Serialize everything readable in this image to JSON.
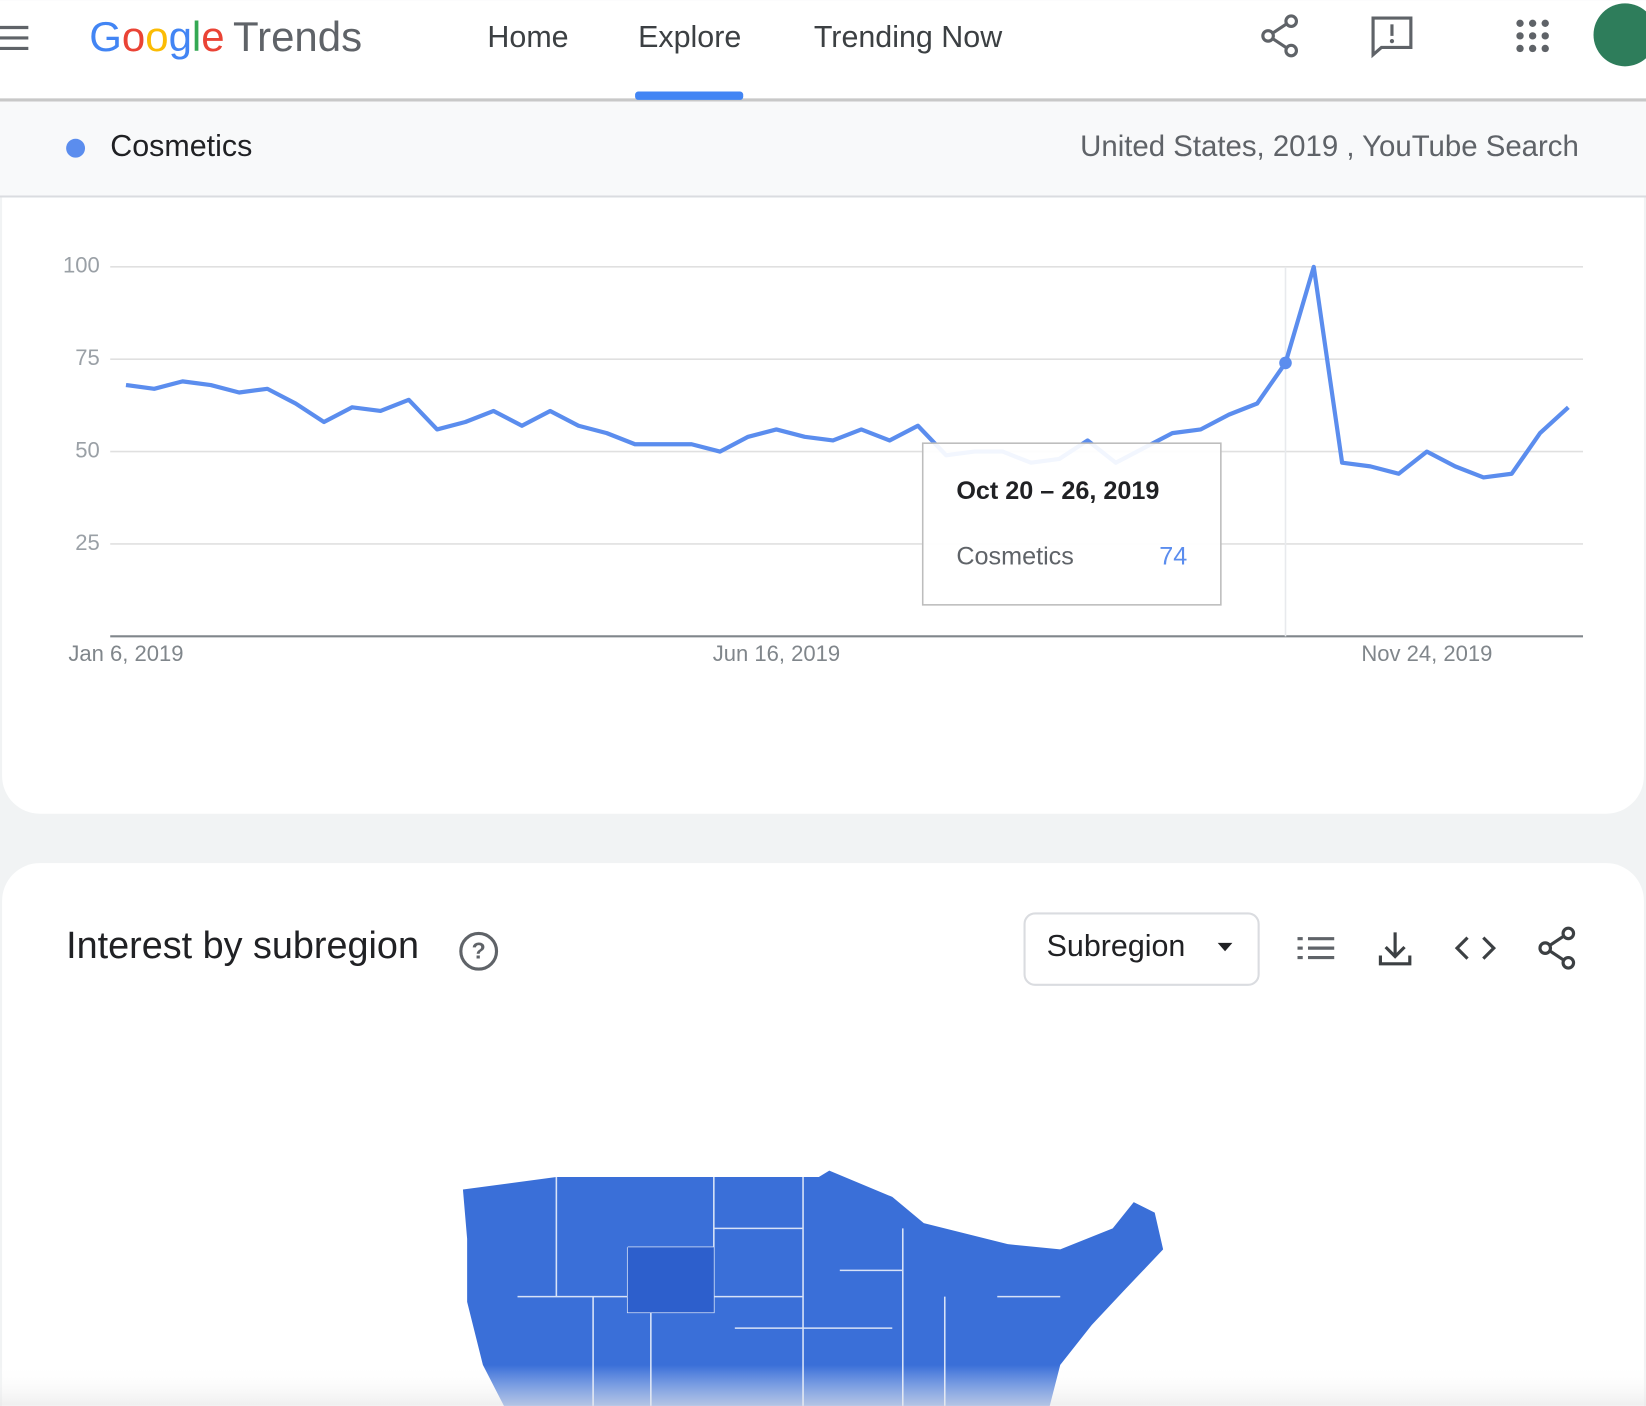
{
  "header": {
    "logo_google": "Google",
    "logo_trends": "Trends",
    "nav": [
      "Home",
      "Explore",
      "Trending Now"
    ]
  },
  "legend_bar": {
    "filters": "United States, 2019 , YouTube Search"
  },
  "chart_data": {
    "type": "line",
    "categories": [
      "Jan 6, 2019",
      null,
      null,
      null,
      null,
      null,
      null,
      null,
      null,
      null,
      null,
      null,
      null,
      null,
      null,
      null,
      null,
      null,
      null,
      null,
      null,
      null,
      null,
      "Jun 16, 2019",
      null,
      null,
      null,
      null,
      null,
      null,
      null,
      null,
      null,
      null,
      null,
      null,
      null,
      null,
      null,
      null,
      null,
      null,
      null,
      null,
      null,
      null,
      "Nov 24, 2019",
      null,
      null,
      null,
      null,
      null
    ],
    "series": [
      {
        "name": "Cosmetics",
        "color": "#5b8dee",
        "values": [
          68,
          67,
          69,
          68,
          66,
          67,
          63,
          58,
          62,
          61,
          64,
          56,
          58,
          61,
          57,
          61,
          57,
          55,
          52,
          52,
          52,
          50,
          54,
          56,
          54,
          53,
          56,
          53,
          57,
          49,
          50,
          50,
          47,
          48,
          53,
          47,
          51,
          55,
          56,
          60,
          63,
          74,
          100,
          47,
          46,
          44,
          50,
          46,
          43,
          44,
          55,
          62
        ]
      }
    ],
    "ylim": [
      0,
      100
    ],
    "yticks": [
      25,
      50,
      75,
      100
    ],
    "grid": true,
    "tooltip": {
      "title": "Oct 20 – 26, 2019"
    }
  },
  "subregion": {
    "title": "Interest by subregion",
    "dropdown": "Subregion"
  }
}
